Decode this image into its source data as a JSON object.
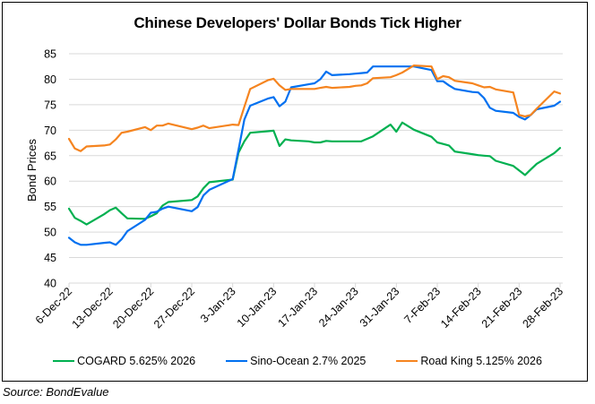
{
  "chart_data": {
    "type": "line",
    "title": "Chinese Developers' Dollar Bonds Tick Higher",
    "xlabel": "",
    "ylabel": "Bond Prices",
    "ylim": [
      40,
      85
    ],
    "yticks": [
      "40",
      "45",
      "50",
      "55",
      "60",
      "65",
      "70",
      "75",
      "80",
      "85"
    ],
    "ytick_values": [
      40,
      45,
      50,
      55,
      60,
      65,
      70,
      75,
      80,
      85
    ],
    "xticks": [
      "6-Dec-22",
      "13-Dec-22",
      "20-Dec-22",
      "27-Dec-22",
      "3-Jan-23",
      "10-Jan-23",
      "17-Jan-23",
      "24-Jan-23",
      "31-Jan-23",
      "7-Feb-23",
      "14-Feb-23",
      "21-Feb-23",
      "28-Feb-23"
    ],
    "xtick_dates": [
      "2022-12-06",
      "2022-12-13",
      "2022-12-20",
      "2022-12-27",
      "2023-01-03",
      "2023-01-10",
      "2023-01-17",
      "2023-01-24",
      "2023-01-31",
      "2023-02-07",
      "2023-02-14",
      "2023-02-21",
      "2023-02-28"
    ],
    "grid": true,
    "legend_position": "bottom",
    "x": [
      "2022-12-06",
      "2022-12-07",
      "2022-12-08",
      "2022-12-09",
      "2022-12-12",
      "2022-12-13",
      "2022-12-14",
      "2022-12-15",
      "2022-12-16",
      "2022-12-19",
      "2022-12-20",
      "2022-12-21",
      "2022-12-22",
      "2022-12-23",
      "2022-12-27",
      "2022-12-28",
      "2022-12-29",
      "2022-12-30",
      "2023-01-03",
      "2023-01-04",
      "2023-01-05",
      "2023-01-06",
      "2023-01-09",
      "2023-01-10",
      "2023-01-11",
      "2023-01-12",
      "2023-01-13",
      "2023-01-16",
      "2023-01-17",
      "2023-01-18",
      "2023-01-19",
      "2023-01-20",
      "2023-01-23",
      "2023-01-24",
      "2023-01-25",
      "2023-01-26",
      "2023-01-27",
      "2023-01-30",
      "2023-01-31",
      "2023-02-01",
      "2023-02-02",
      "2023-02-03",
      "2023-02-06",
      "2023-02-07",
      "2023-02-08",
      "2023-02-09",
      "2023-02-10",
      "2023-02-13",
      "2023-02-14",
      "2023-02-15",
      "2023-02-16",
      "2023-02-17",
      "2023-02-20",
      "2023-02-21",
      "2023-02-22",
      "2023-02-23",
      "2023-02-24",
      "2023-02-27",
      "2023-02-28"
    ],
    "series": [
      {
        "name": "COGARD 5.625% 2026",
        "color": "#00B050",
        "values": [
          54.6,
          52.8,
          52.2,
          51.5,
          53.5,
          54.3,
          54.8,
          53.7,
          52.7,
          52.6,
          53.1,
          53.7,
          55.2,
          55.9,
          56.3,
          57.0,
          58.6,
          59.8,
          60.3,
          65.6,
          67.8,
          69.5,
          69.8,
          69.9,
          66.9,
          68.2,
          68.0,
          67.8,
          67.6,
          67.6,
          67.9,
          67.8,
          67.8,
          67.8,
          67.8,
          68.3,
          68.8,
          71.1,
          69.7,
          71.5,
          70.8,
          70.1,
          68.7,
          67.6,
          67.3,
          67.0,
          65.8,
          65.3,
          65.1,
          65.0,
          64.9,
          64.0,
          63.0,
          62.1,
          61.2,
          62.3,
          63.4,
          65.5,
          66.5
        ]
      },
      {
        "name": "Sino-Ocean 2.7% 2025",
        "color": "#0070F0",
        "values": [
          48.9,
          48.0,
          47.5,
          47.5,
          47.9,
          48.0,
          47.5,
          48.6,
          50.2,
          52.4,
          53.8,
          54.0,
          54.6,
          55.0,
          54.1,
          54.9,
          57.2,
          58.3,
          60.4,
          66.2,
          72.1,
          74.8,
          76.2,
          76.5,
          74.7,
          75.6,
          78.4,
          79.0,
          79.2,
          80.0,
          81.5,
          80.8,
          81.0,
          81.1,
          81.2,
          81.3,
          82.5,
          82.5,
          82.5,
          82.5,
          82.5,
          82.5,
          81.8,
          79.6,
          79.6,
          78.8,
          78.1,
          77.5,
          77.4,
          76.3,
          74.4,
          73.8,
          73.4,
          72.6,
          72.1,
          73.0,
          74.1,
          74.8,
          75.6
        ]
      },
      {
        "name": "Road King 5.125% 2026",
        "color": "#F5841F",
        "values": [
          68.3,
          66.4,
          65.9,
          66.8,
          67.0,
          67.2,
          68.2,
          69.5,
          69.7,
          70.6,
          70.0,
          70.9,
          70.9,
          71.3,
          70.2,
          70.5,
          70.9,
          70.4,
          71.1,
          71.0,
          74.6,
          78.1,
          79.8,
          80.1,
          78.8,
          77.9,
          78.1,
          78.1,
          78.1,
          78.3,
          78.5,
          78.3,
          78.5,
          78.7,
          78.8,
          79.2,
          80.2,
          80.4,
          80.8,
          81.3,
          82.0,
          82.7,
          82.5,
          80.0,
          80.6,
          80.4,
          79.7,
          79.2,
          78.8,
          78.4,
          78.5,
          78.0,
          77.4,
          73.0,
          72.7,
          73.0,
          74.2,
          77.6,
          77.2
        ]
      }
    ]
  },
  "source": "Source: BondEvalue"
}
